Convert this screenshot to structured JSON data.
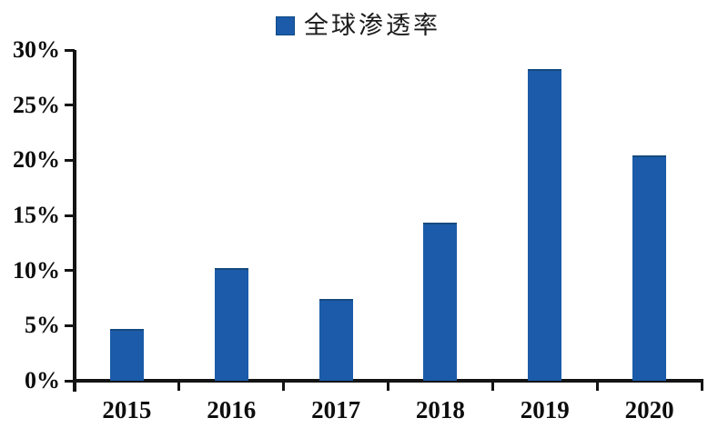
{
  "chart_data": {
    "type": "bar",
    "title": "",
    "legend_label": "全球渗透率",
    "legend_position": "top-center",
    "categories": [
      "2015",
      "2016",
      "2017",
      "2018",
      "2019",
      "2020"
    ],
    "values": [
      4.7,
      10.2,
      7.4,
      14.3,
      28.3,
      20.4
    ],
    "unit": "%",
    "xlabel": "",
    "ylabel": "",
    "ylim": [
      0,
      30
    ],
    "ytick_values": [
      0,
      5,
      10,
      15,
      20,
      25,
      30
    ],
    "ytick_labels": [
      "0%",
      "5%",
      "10%",
      "15%",
      "20%",
      "25%",
      "30%"
    ],
    "grid": false
  },
  "colors": {
    "bar": "#1b5ba9",
    "bar_edge": "#164a80",
    "axis": "#141414",
    "text": "#0d0d0d",
    "background": "#ffffff"
  }
}
